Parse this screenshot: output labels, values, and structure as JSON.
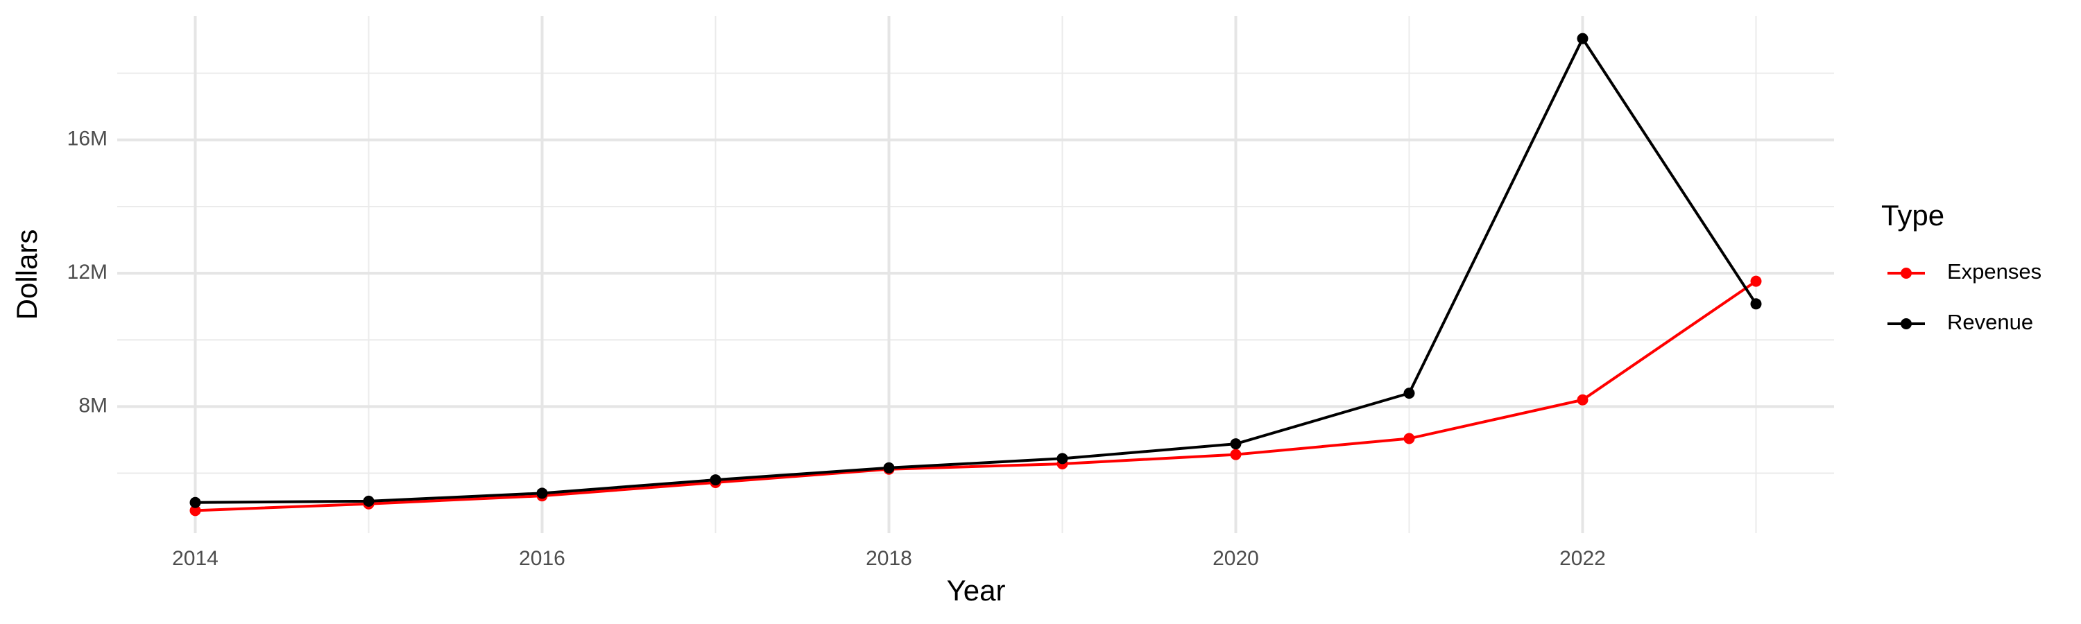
{
  "chart_data": {
    "type": "line",
    "x_label": "Year",
    "y_label": "Dollars",
    "legend_title": "Type",
    "legend_position": "right",
    "x": [
      2014,
      2015,
      2016,
      2017,
      2018,
      2019,
      2020,
      2021,
      2022,
      2023
    ],
    "series": [
      {
        "name": "Expenses",
        "color": "#ff0000",
        "values": [
          4880000,
          5080000,
          5320000,
          5720000,
          6120000,
          6280000,
          6560000,
          7040000,
          8200000,
          11760000
        ]
      },
      {
        "name": "Revenue",
        "color": "#000000",
        "values": [
          5120000,
          5160000,
          5400000,
          5800000,
          6160000,
          6440000,
          6880000,
          8400000,
          19040000,
          11080000
        ]
      }
    ],
    "xlim": [
      2013.55,
      2023.45
    ],
    "xticks": [
      2014,
      2016,
      2018,
      2020,
      2022
    ],
    "x_minor_ticks": [
      2015,
      2017,
      2019,
      2021,
      2023
    ],
    "ylim": [
      4200000,
      19720000
    ],
    "yticks": [
      {
        "value": 8000000,
        "label": "8M"
      },
      {
        "value": 12000000,
        "label": "12M"
      },
      {
        "value": 16000000,
        "label": "16M"
      }
    ],
    "y_minor_ticks": [
      6000000,
      10000000,
      14000000,
      18000000
    ],
    "grid": true
  }
}
